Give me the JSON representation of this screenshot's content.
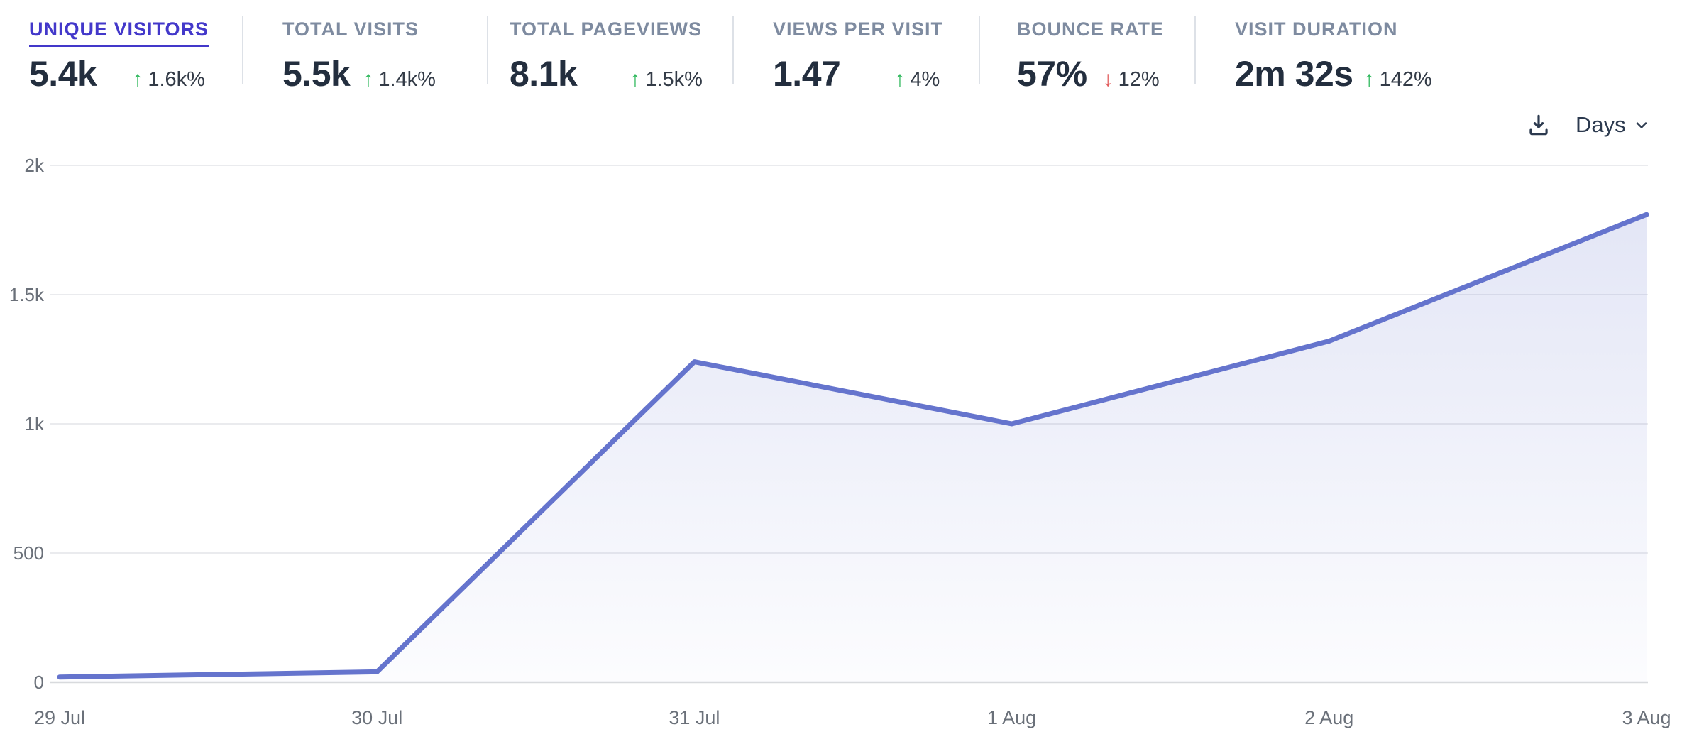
{
  "metrics": [
    {
      "label": "UNIQUE VISITORS",
      "value": "5.4k",
      "delta": "1.6k%",
      "direction": "up",
      "active": true
    },
    {
      "label": "TOTAL VISITS",
      "value": "5.5k",
      "delta": "1.4k%",
      "direction": "up",
      "active": false
    },
    {
      "label": "TOTAL PAGEVIEWS",
      "value": "8.1k",
      "delta": "1.5k%",
      "direction": "up",
      "active": false
    },
    {
      "label": "VIEWS PER VISIT",
      "value": "1.47",
      "delta": "4%",
      "direction": "up",
      "active": false
    },
    {
      "label": "BOUNCE RATE",
      "value": "57%",
      "delta": "12%",
      "direction": "down",
      "active": false
    },
    {
      "label": "VISIT DURATION",
      "value": "2m 32s",
      "delta": "142%",
      "direction": "up",
      "active": false
    }
  ],
  "toolbar": {
    "download_icon": "download-icon",
    "interval_label": "Days",
    "chevron_icon": "chevron-down-icon"
  },
  "colors": {
    "accent": "#4338ca",
    "positive": "#2eb85c",
    "negative": "#e25c5c",
    "metric_label": "#7e8ba0",
    "metric_value": "#232e3e",
    "axis_label": "#6a7079",
    "line": "#6574cd"
  },
  "chart_data": {
    "type": "area",
    "title": "",
    "selected_metric": "UNIQUE VISITORS",
    "x": [
      "29 Jul",
      "30 Jul",
      "31 Jul",
      "1 Aug",
      "2 Aug",
      "3 Aug"
    ],
    "values": [
      20,
      40,
      1240,
      1000,
      1320,
      1810
    ],
    "ylim": [
      0,
      2000
    ],
    "yticks": [
      {
        "value": 0,
        "label": "0"
      },
      {
        "value": 500,
        "label": "500"
      },
      {
        "value": 1000,
        "label": "1k"
      },
      {
        "value": 1500,
        "label": "1.5k"
      },
      {
        "value": 2000,
        "label": "2k"
      }
    ],
    "grid": "horizontal",
    "legend": "none",
    "line_color": "#6574cd",
    "fill_opacity_top": 0.18,
    "fill_opacity_bottom": 0.02
  }
}
